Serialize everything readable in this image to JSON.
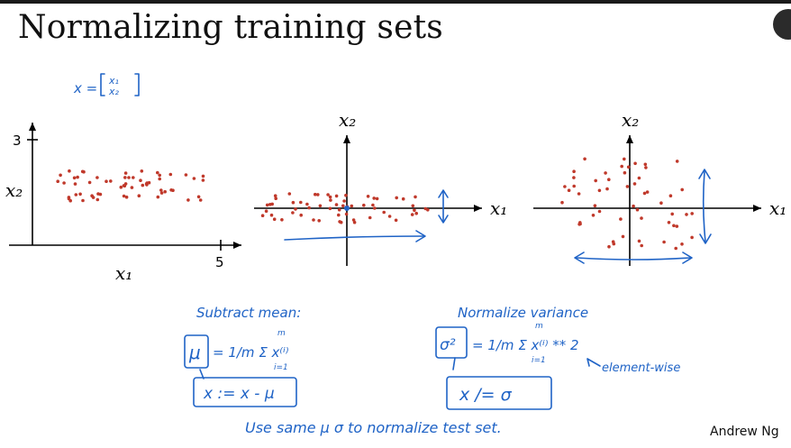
{
  "slide": {
    "title": "Normalizing training sets",
    "credit": "Andrew Ng"
  },
  "vector_definition": {
    "lhs": "x =",
    "entries": [
      "x₁",
      "x₂"
    ]
  },
  "plot1": {
    "y_label": "x₂",
    "x_label": "x₁",
    "y_tick": "3",
    "x_tick": "5"
  },
  "plot2": {
    "y_label": "x₂",
    "x_label": "x₁"
  },
  "plot3": {
    "y_label": "x₂",
    "x_label": "x₁"
  },
  "notes": {
    "subtract_heading": "Subtract mean:",
    "mu_formula_lhs": "μ",
    "mu_formula_rhs": "= 1/m Σ x⁽ⁱ⁾",
    "sum_limits": {
      "top": "m",
      "bottom": "i=1"
    },
    "mu_update": "x := x - μ",
    "variance_heading": "Normalize variance",
    "sigma_formula_lhs": "σ²",
    "sigma_formula_rhs": "= 1/m Σ x⁽ⁱ⁾ ** 2",
    "elementwise": "element-wise",
    "sigma_update": "x /= σ",
    "footer_note": "Use same μ σ to normalize test set."
  },
  "colors": {
    "ink": "#1f63c6",
    "dots": "#c0392b",
    "axis": "#000000"
  }
}
